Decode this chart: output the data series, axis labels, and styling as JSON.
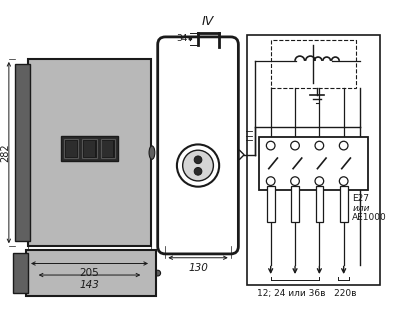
{
  "bg_color": "#ffffff",
  "title_IV": "IV",
  "dim_282": "282",
  "dim_205": "205",
  "dim_143": "143",
  "dim_130": "130",
  "dim_34": "34",
  "label_E27": "E27",
  "label_ili": "или",
  "label_AE1000": "AE1000",
  "label_voltage": "12; 24 или 36в   220в",
  "gray_fill": "#b8b8b8",
  "dark_gray": "#606060",
  "line_color": "#1a1a1a",
  "text_color": "#1a1a1a",
  "figsize": [
    3.94,
    3.1
  ],
  "dpi": 100,
  "xlim": [
    0,
    394
  ],
  "ylim": [
    0,
    310
  ]
}
